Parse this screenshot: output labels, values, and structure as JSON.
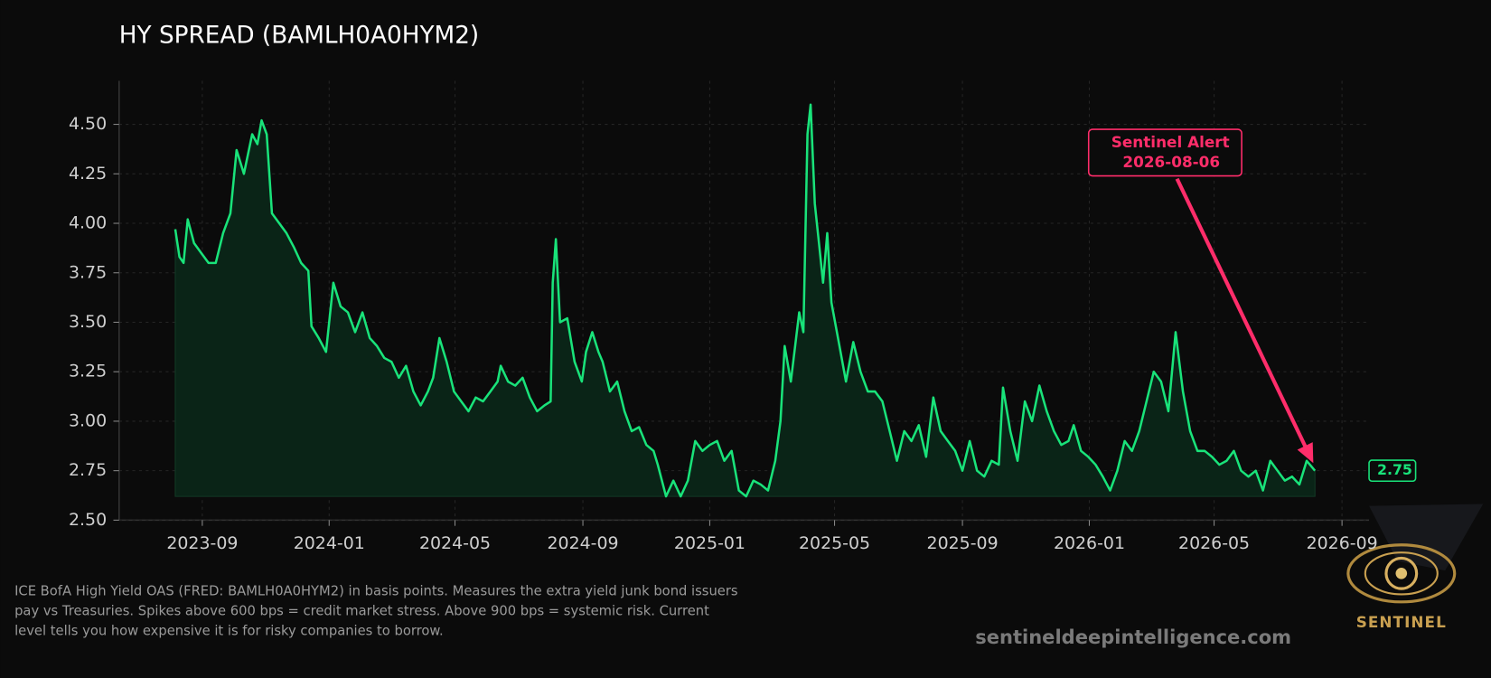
{
  "chart_data": {
    "type": "line",
    "title": "HY SPREAD (BAMLH0A0HYM2)",
    "x": [
      "2023-08-06",
      "2023-08-10",
      "2023-08-14",
      "2023-08-18",
      "2023-08-24",
      "2023-08-31",
      "2023-09-07",
      "2023-09-14",
      "2023-09-21",
      "2023-09-28",
      "2023-10-04",
      "2023-10-11",
      "2023-10-19",
      "2023-10-24",
      "2023-10-28",
      "2023-11-02",
      "2023-11-07",
      "2023-11-14",
      "2023-11-21",
      "2023-11-28",
      "2023-12-05",
      "2023-12-12",
      "2023-12-15",
      "2023-12-22",
      "2023-12-29",
      "2024-01-05",
      "2024-01-12",
      "2024-01-19",
      "2024-01-26",
      "2024-02-02",
      "2024-02-09",
      "2024-02-16",
      "2024-02-23",
      "2024-03-01",
      "2024-03-08",
      "2024-03-15",
      "2024-03-22",
      "2024-03-29",
      "2024-04-05",
      "2024-04-10",
      "2024-04-16",
      "2024-04-23",
      "2024-04-30",
      "2024-05-07",
      "2024-05-14",
      "2024-05-21",
      "2024-05-28",
      "2024-06-04",
      "2024-06-11",
      "2024-06-14",
      "2024-06-21",
      "2024-06-28",
      "2024-07-05",
      "2024-07-12",
      "2024-07-19",
      "2024-07-26",
      "2024-08-01",
      "2024-08-03",
      "2024-08-06",
      "2024-08-10",
      "2024-08-17",
      "2024-08-24",
      "2024-08-31",
      "2024-09-04",
      "2024-09-10",
      "2024-09-16",
      "2024-09-20",
      "2024-09-27",
      "2024-10-04",
      "2024-10-11",
      "2024-10-18",
      "2024-10-25",
      "2024-11-01",
      "2024-11-08",
      "2024-11-12",
      "2024-11-20",
      "2024-11-27",
      "2024-12-04",
      "2024-12-11",
      "2024-12-18",
      "2024-12-25",
      "2025-01-01",
      "2025-01-08",
      "2025-01-15",
      "2025-01-22",
      "2025-01-29",
      "2025-02-05",
      "2025-02-12",
      "2025-02-19",
      "2025-02-26",
      "2025-03-05",
      "2025-03-10",
      "2025-03-14",
      "2025-03-20",
      "2025-03-28",
      "2025-04-01",
      "2025-04-05",
      "2025-04-08",
      "2025-04-12",
      "2025-04-16",
      "2025-04-20",
      "2025-04-24",
      "2025-04-28",
      "2025-05-05",
      "2025-05-12",
      "2025-05-19",
      "2025-05-26",
      "2025-06-02",
      "2025-06-09",
      "2025-06-16",
      "2025-06-23",
      "2025-06-30",
      "2025-07-07",
      "2025-07-14",
      "2025-07-21",
      "2025-07-28",
      "2025-08-04",
      "2025-08-11",
      "2025-08-18",
      "2025-08-25",
      "2025-09-01",
      "2025-09-08",
      "2025-09-15",
      "2025-09-22",
      "2025-09-29",
      "2025-10-06",
      "2025-10-10",
      "2025-10-17",
      "2025-10-24",
      "2025-10-31",
      "2025-11-07",
      "2025-11-14",
      "2025-11-21",
      "2025-11-28",
      "2025-12-05",
      "2025-12-12",
      "2025-12-17",
      "2025-12-24",
      "2025-12-31",
      "2026-01-07",
      "2026-01-14",
      "2026-01-21",
      "2026-01-28",
      "2026-02-04",
      "2026-02-11",
      "2026-02-18",
      "2026-02-25",
      "2026-03-04",
      "2026-03-11",
      "2026-03-18",
      "2026-03-25",
      "2026-04-01",
      "2026-04-08",
      "2026-04-15",
      "2026-04-22",
      "2026-04-29",
      "2026-05-06",
      "2026-05-13",
      "2026-05-20",
      "2026-05-27",
      "2026-06-03",
      "2026-06-10",
      "2026-06-17",
      "2026-06-24",
      "2026-07-01",
      "2026-07-08",
      "2026-07-15",
      "2026-07-22",
      "2026-07-29",
      "2026-08-06"
    ],
    "series": [
      {
        "color": "#19e37a",
        "fill": "#0a2417",
        "values": [
          3.97,
          3.83,
          3.8,
          4.02,
          3.9,
          3.85,
          3.8,
          3.8,
          3.95,
          4.05,
          4.37,
          4.25,
          4.45,
          4.4,
          4.52,
          4.45,
          4.05,
          4.0,
          3.95,
          3.88,
          3.8,
          3.76,
          3.48,
          3.42,
          3.35,
          3.7,
          3.58,
          3.55,
          3.45,
          3.55,
          3.42,
          3.38,
          3.32,
          3.3,
          3.22,
          3.28,
          3.15,
          3.08,
          3.15,
          3.22,
          3.42,
          3.3,
          3.15,
          3.1,
          3.05,
          3.12,
          3.1,
          3.15,
          3.2,
          3.28,
          3.2,
          3.18,
          3.22,
          3.12,
          3.05,
          3.08,
          3.1,
          3.7,
          3.92,
          3.5,
          3.52,
          3.3,
          3.2,
          3.35,
          3.45,
          3.35,
          3.3,
          3.15,
          3.2,
          3.05,
          2.95,
          2.97,
          2.88,
          2.85,
          2.78,
          2.62,
          2.7,
          2.62,
          2.7,
          2.9,
          2.85,
          2.88,
          2.9,
          2.8,
          2.85,
          2.65,
          2.62,
          2.7,
          2.68,
          2.65,
          2.8,
          3.0,
          3.38,
          3.2,
          3.55,
          3.45,
          4.45,
          4.6,
          4.1,
          3.9,
          3.7,
          3.95,
          3.6,
          3.4,
          3.2,
          3.4,
          3.25,
          3.15,
          3.15,
          3.1,
          2.95,
          2.8,
          2.95,
          2.9,
          2.98,
          2.82,
          3.12,
          2.95,
          2.9,
          2.85,
          2.75,
          2.9,
          2.75,
          2.72,
          2.8,
          2.78,
          3.17,
          2.95,
          2.8,
          3.1,
          3.0,
          3.18,
          3.05,
          2.95,
          2.88,
          2.9,
          2.98,
          2.85,
          2.82,
          2.78,
          2.72,
          2.65,
          2.75,
          2.9,
          2.85,
          2.95,
          3.1,
          3.25,
          3.2,
          3.05,
          3.45,
          3.15,
          2.95,
          2.85,
          2.85,
          2.82,
          2.78,
          2.8,
          2.85,
          2.75,
          2.72,
          2.75,
          2.65,
          2.8,
          2.75,
          2.7,
          2.72,
          2.68,
          2.8,
          2.75
        ]
      }
    ],
    "xlim": [
      "2023-06-13",
      "2026-09-27"
    ],
    "xticks": [
      {
        "value": "2023-09-01",
        "label": "2023-09"
      },
      {
        "value": "2024-01-01",
        "label": "2024-01"
      },
      {
        "value": "2024-05-01",
        "label": "2024-05"
      },
      {
        "value": "2024-09-01",
        "label": "2024-09"
      },
      {
        "value": "2025-01-01",
        "label": "2025-01"
      },
      {
        "value": "2025-05-01",
        "label": "2025-05"
      },
      {
        "value": "2025-09-01",
        "label": "2025-09"
      },
      {
        "value": "2026-01-01",
        "label": "2026-01"
      },
      {
        "value": "2026-05-01",
        "label": "2026-05"
      },
      {
        "value": "2026-09-01",
        "label": "2026-09"
      }
    ],
    "ylim": [
      2.5,
      4.72
    ],
    "yticks": [
      {
        "value": 2.5,
        "label": "2.50"
      },
      {
        "value": 2.75,
        "label": "2.75"
      },
      {
        "value": 3,
        "label": "3.00"
      },
      {
        "value": 3.25,
        "label": "3.25"
      },
      {
        "value": 3.5,
        "label": "3.50"
      },
      {
        "value": 3.75,
        "label": "3.75"
      },
      {
        "value": 4,
        "label": "4.00"
      },
      {
        "value": 4.25,
        "label": "4.25"
      },
      {
        "value": 4.5,
        "label": "4.50"
      }
    ],
    "grid": true,
    "annotation": {
      "label": "Sentinel Alert",
      "date": "2026-08-06",
      "color": "#ff2d6a"
    }
  },
  "footer": {
    "description": [
      "ICE BofA High Yield OAS (FRED: BAMLH0A0HYM2) in basis points. Measures the extra yield junk bond issuers",
      "pay vs Treasuries. Spikes above 600 bps = credit market stress. Above 900 bps = systemic risk. Current",
      "level tells you how expensive it is for risky companies to borrow."
    ],
    "website": "sentineldeepintelligence.com",
    "logo_text": "SENTINEL"
  }
}
